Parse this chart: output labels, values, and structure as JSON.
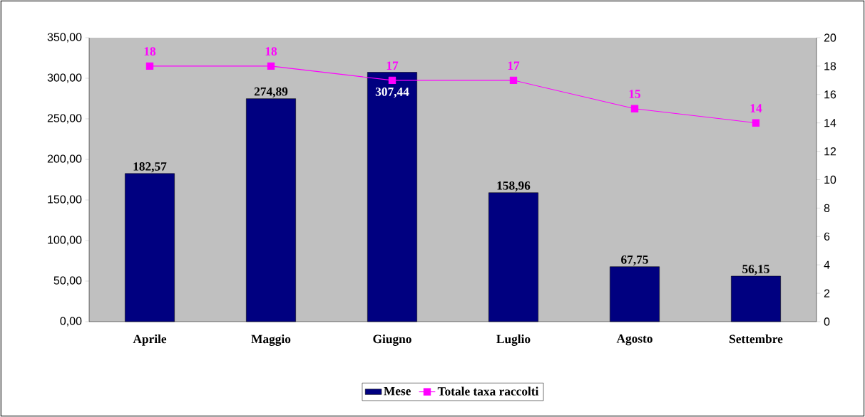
{
  "chart_data": {
    "type": "bar",
    "categories": [
      "Aprile",
      "Maggio",
      "Giugno",
      "Luglio",
      "Agosto",
      "Settembre"
    ],
    "series": [
      {
        "name": "Mese",
        "color": "#000080",
        "values": [
          182.57,
          274.89,
          307.44,
          158.96,
          67.75,
          56.15
        ],
        "value_labels": [
          "182,57",
          "274,89",
          "307,44",
          "158,96",
          "67,75",
          "56,15"
        ]
      },
      {
        "name": "Totale taxa raccolti",
        "type": "line",
        "axis": "y2",
        "color": "#ff00ff",
        "marker": "square",
        "values": [
          18,
          18,
          17,
          17,
          15,
          14
        ],
        "value_labels": [
          "18",
          "18",
          "17",
          "17",
          "15",
          "14"
        ]
      }
    ],
    "ylim": [
      0,
      350
    ],
    "yticks": [
      {
        "value": 0,
        "label": "0,00"
      },
      {
        "value": 50,
        "label": "50,00"
      },
      {
        "value": 100,
        "label": "100,00"
      },
      {
        "value": 150,
        "label": "150,00"
      },
      {
        "value": 200,
        "label": "200,00"
      },
      {
        "value": 250,
        "label": "250,00"
      },
      {
        "value": 300,
        "label": "300,00"
      },
      {
        "value": 350,
        "label": "350,00"
      }
    ],
    "y2lim": [
      0,
      20
    ],
    "y2ticks": [
      0,
      2,
      4,
      6,
      8,
      10,
      12,
      14,
      16,
      18,
      20
    ],
    "legend": "bottom"
  }
}
